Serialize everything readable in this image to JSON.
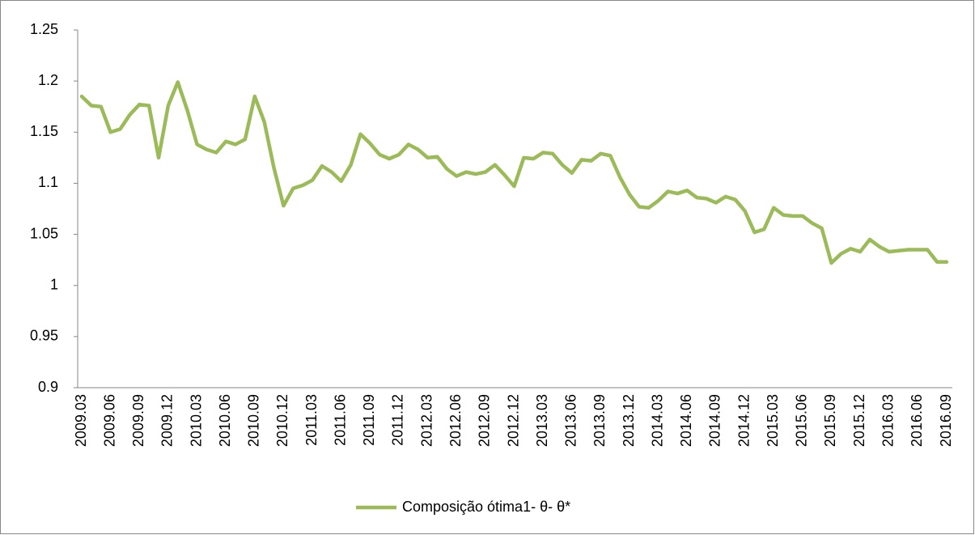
{
  "chart_data": {
    "type": "line",
    "categories": [
      "2009.03",
      null,
      null,
      "2009.06",
      null,
      null,
      "2009.09",
      null,
      null,
      "2009.12",
      null,
      null,
      "2010.03",
      null,
      null,
      "2010.06",
      null,
      null,
      "2010.09",
      null,
      null,
      "2010.12",
      null,
      null,
      "2011.03",
      null,
      null,
      "2011.06",
      null,
      null,
      "2011.09",
      null,
      null,
      "2011.12",
      null,
      null,
      "2012.03",
      null,
      null,
      "2012.06",
      null,
      null,
      "2012.09",
      null,
      null,
      "2012.12",
      null,
      null,
      "2013.03",
      null,
      null,
      "2013.06",
      null,
      null,
      "2013.09",
      null,
      null,
      "2013.12",
      null,
      null,
      "2014.03",
      null,
      null,
      "2014.06",
      null,
      null,
      "2014.09",
      null,
      null,
      "2014.12",
      null,
      null,
      "2015.03",
      null,
      null,
      "2015.06",
      null,
      null,
      "2015.09",
      null,
      null,
      "2015.12",
      null,
      null,
      "2016.03",
      null,
      null,
      "2016.06",
      null,
      null,
      "2016.09"
    ],
    "series": [
      {
        "name": "Composição ótima1- θ- θ*",
        "color": "#9bbb59",
        "values": [
          1.185,
          1.176,
          1.175,
          1.15,
          1.153,
          1.167,
          1.177,
          1.176,
          1.125,
          1.176,
          1.199,
          1.171,
          1.138,
          1.133,
          1.13,
          1.141,
          1.138,
          1.143,
          1.185,
          1.16,
          1.115,
          1.078,
          1.095,
          1.098,
          1.103,
          1.117,
          1.111,
          1.102,
          1.118,
          1.148,
          1.139,
          1.128,
          1.124,
          1.128,
          1.138,
          1.133,
          1.125,
          1.126,
          1.114,
          1.107,
          1.111,
          1.109,
          1.111,
          1.118,
          1.108,
          1.097,
          1.125,
          1.124,
          1.13,
          1.129,
          1.118,
          1.11,
          1.123,
          1.122,
          1.129,
          1.127,
          1.106,
          1.089,
          1.077,
          1.076,
          1.083,
          1.092,
          1.09,
          1.093,
          1.086,
          1.085,
          1.081,
          1.087,
          1.084,
          1.073,
          1.052,
          1.055,
          1.076,
          1.069,
          1.068,
          1.068,
          1.061,
          1.056,
          1.022,
          1.031,
          1.036,
          1.033,
          1.045,
          1.038,
          1.033,
          1.034,
          1.035,
          1.035,
          1.035,
          1.023,
          1.023
        ]
      }
    ],
    "ylim": [
      0.9,
      1.25
    ],
    "yticks": [
      0.9,
      0.95,
      1,
      1.05,
      1.1,
      1.15,
      1.2,
      1.25
    ],
    "legend": "bottom"
  }
}
